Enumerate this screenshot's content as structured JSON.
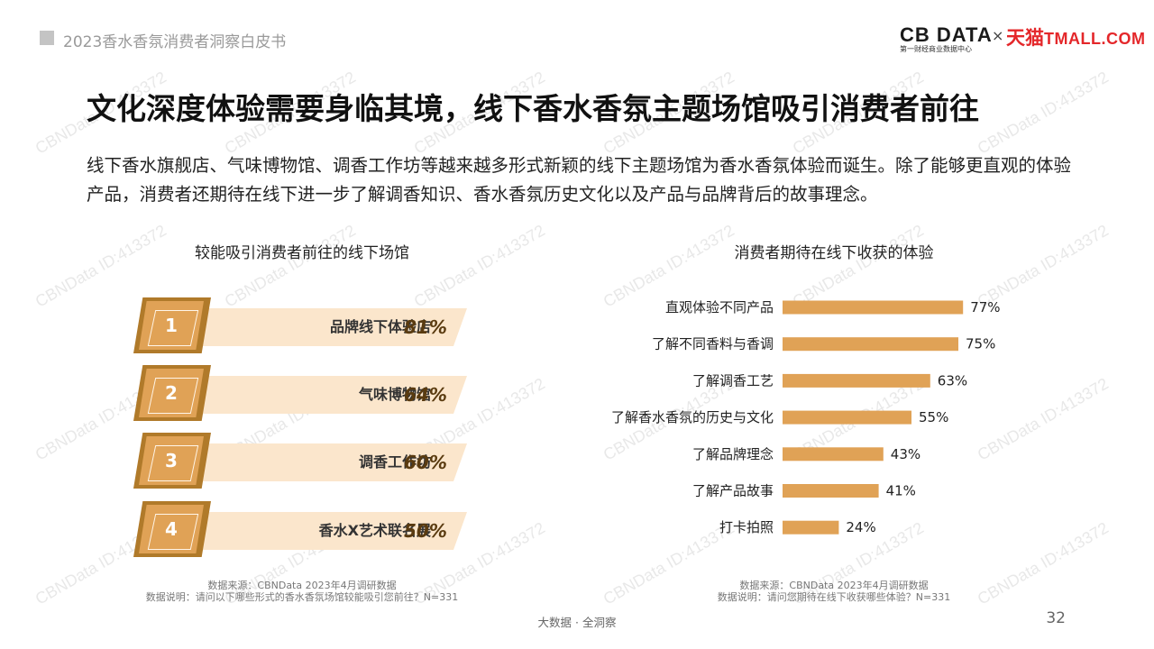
{
  "header": {
    "report_title": "2023香水香氛消费者洞察白皮书"
  },
  "logo": {
    "cbndata": "CB DATA",
    "cbndata_sub": "第一财经商业数据中心",
    "separator": "×",
    "tmall_cn": "天猫",
    "tmall_en": "TMALL.COM"
  },
  "main": {
    "title": "文化深度体验需要身临其境，线下香水香氛主题场馆吸引消费者前往",
    "description": "线下香水旗舰店、气味博物馆、调香工作坊等越来越多形式新颖的线下主题场馆为香水香氛体验而诞生。除了能够更直观的体验产品，消费者还期待在线下进一步了解调香知识、香水香氛历史文化以及产品与品牌背后的故事理念。"
  },
  "left_panel": {
    "subtitle": "较能吸引消费者前往的线下场馆",
    "ranks": [
      {
        "num": "1",
        "label": "品牌线下体验店",
        "pct": "81%"
      },
      {
        "num": "2",
        "label": "气味博物馆",
        "pct": "64%"
      },
      {
        "num": "3",
        "label": "调香工作坊",
        "pct": "60%"
      },
      {
        "num": "4",
        "label": "香水X艺术联名展",
        "pct": "50%"
      }
    ],
    "source": "数据来源：CBNData 2023年4月调研数据",
    "note": "数据说明：请问以下哪些形式的香水香氛场馆较能吸引您前往？N=331"
  },
  "right_panel": {
    "subtitle": "消费者期待在线下收获的体验",
    "source": "数据来源：CBNData 2023年4月调研数据",
    "note": "数据说明：请问您期待在线下收获哪些体验？N=331"
  },
  "chart_data": {
    "type": "bar",
    "orientation": "horizontal",
    "categories": [
      "直观体验不同产品",
      "了解不同香料与香调",
      "了解调香工艺",
      "了解香水香氛的历史与文化",
      "了解品牌理念",
      "了解产品故事",
      "打卡拍照"
    ],
    "values": [
      77,
      75,
      63,
      55,
      43,
      41,
      24
    ],
    "value_labels": [
      "77%",
      "75%",
      "63%",
      "55%",
      "43%",
      "41%",
      "24%"
    ],
    "unit": "%",
    "xlim": [
      0,
      100
    ],
    "bar_color": "#e0a256",
    "grid": false,
    "legend": "none"
  },
  "footer": {
    "tagline": "大数据 · 全洞察",
    "page": "32"
  },
  "watermark": "CBNData ID:413372",
  "colors": {
    "accent": "#e0a256",
    "badge_dark": "#b07a2a",
    "ribbon": "#fbe6cc",
    "tmall_red": "#e4272a"
  }
}
